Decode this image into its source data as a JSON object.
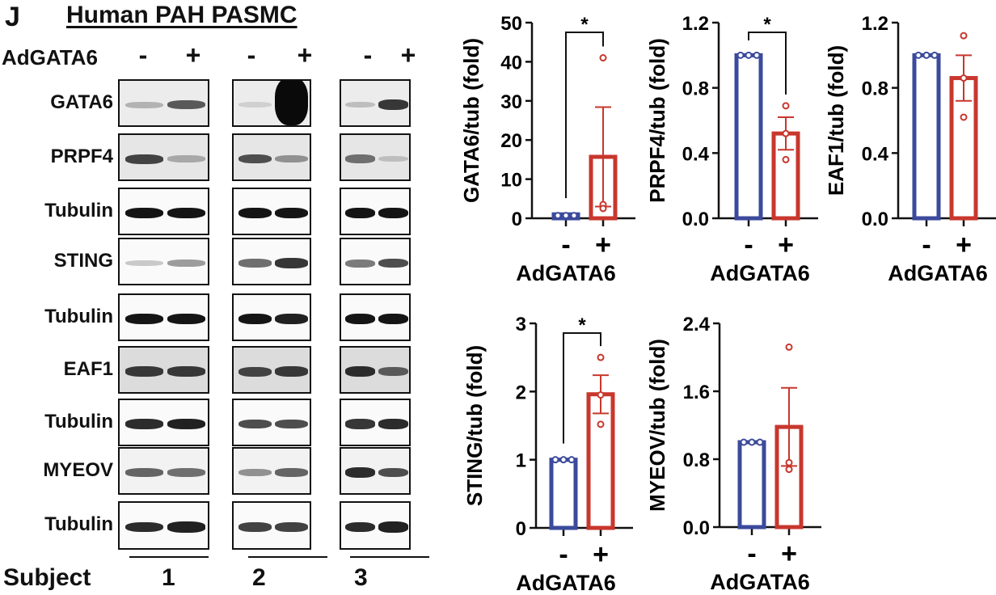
{
  "figure": {
    "panel_letter": "J",
    "title": "Human PAH PASMC",
    "treatment_label": "AdGATA6",
    "treatment_signs": [
      "-",
      "+",
      "-",
      "+",
      "-",
      "+"
    ],
    "subject_label": "Subject",
    "subjects": [
      "1",
      "2",
      "3"
    ],
    "blot_rows": [
      {
        "label": "GATA6",
        "bands": [
          0.25,
          0.65,
          0.12,
          1.0,
          0.2,
          0.8
        ]
      },
      {
        "label": "PRPF4",
        "bands": [
          0.75,
          0.3,
          0.7,
          0.4,
          0.55,
          0.2
        ]
      },
      {
        "label": "Tubulin",
        "bands": [
          0.95,
          0.95,
          0.95,
          0.95,
          0.95,
          0.95
        ]
      },
      {
        "label": "STING",
        "bands": [
          0.15,
          0.35,
          0.55,
          0.8,
          0.5,
          0.7
        ]
      },
      {
        "label": "Tubulin",
        "bands": [
          0.95,
          0.95,
          0.95,
          0.9,
          0.95,
          0.95
        ]
      },
      {
        "label": "EAF1",
        "bands": [
          0.8,
          0.8,
          0.75,
          0.8,
          0.85,
          0.65
        ]
      },
      {
        "label": "Tubulin",
        "bands": [
          0.85,
          0.9,
          0.7,
          0.7,
          0.8,
          0.85
        ]
      },
      {
        "label": "MYEOV",
        "bands": [
          0.6,
          0.55,
          0.4,
          0.6,
          0.85,
          0.7
        ]
      },
      {
        "label": "Tubulin",
        "bands": [
          0.85,
          0.9,
          0.75,
          0.75,
          0.85,
          0.9
        ]
      }
    ],
    "colors": {
      "control": "#3b4a9c",
      "treated": "#c8372d"
    }
  },
  "chart_data": [
    {
      "type": "bar",
      "title": "",
      "ylabel": "GATA6/tub (fold)",
      "xlabel": "AdGATA6",
      "categories": [
        "-",
        "+"
      ],
      "values": [
        1.0,
        15.7
      ],
      "error_sem": [
        0,
        12.7
      ],
      "points": [
        [
          0.7,
          0.7,
          0.7
        ],
        [
          41,
          3.5,
          2.5
        ]
      ],
      "ylim": [
        0,
        50
      ],
      "yticks": [
        "0",
        "10",
        "20",
        "30",
        "40",
        "50"
      ],
      "significance": "*"
    },
    {
      "type": "bar",
      "title": "",
      "ylabel": "PRPF4/tub (fold)",
      "xlabel": "AdGATA6",
      "categories": [
        "-",
        "+"
      ],
      "values": [
        1.0,
        0.52
      ],
      "error_sem": [
        0,
        0.1
      ],
      "points": [
        [
          1.0,
          1.0,
          1.0
        ],
        [
          0.69,
          0.52,
          0.36
        ]
      ],
      "ylim": [
        0,
        1.2
      ],
      "yticks": [
        "0.0",
        "0.4",
        "0.8",
        "1.2"
      ],
      "significance": "*"
    },
    {
      "type": "bar",
      "title": "",
      "ylabel": "EAF1/tub (fold)",
      "xlabel": "AdGATA6",
      "categories": [
        "-",
        "+"
      ],
      "values": [
        1.0,
        0.86
      ],
      "error_sem": [
        0,
        0.14
      ],
      "points": [
        [
          1.0,
          1.0,
          1.0
        ],
        [
          1.12,
          0.86,
          0.62
        ]
      ],
      "ylim": [
        0,
        1.2
      ],
      "yticks": [
        "0.0",
        "0.4",
        "0.8",
        "1.2"
      ],
      "significance": ""
    },
    {
      "type": "bar",
      "title": "",
      "ylabel": "STING/tub (fold)",
      "xlabel": "AdGATA6",
      "categories": [
        "-",
        "+"
      ],
      "values": [
        1.0,
        1.96
      ],
      "error_sem": [
        0,
        0.28
      ],
      "points": [
        [
          1.0,
          1.0,
          1.0
        ],
        [
          2.5,
          1.95,
          1.52
        ]
      ],
      "ylim": [
        0,
        3
      ],
      "yticks": [
        "0",
        "1",
        "2",
        "3"
      ],
      "significance": "*"
    },
    {
      "type": "bar",
      "title": "",
      "ylabel": "MYEOV/tub (fold)",
      "xlabel": "AdGATA6",
      "categories": [
        "-",
        "+"
      ],
      "values": [
        1.0,
        1.18
      ],
      "error_sem": [
        0,
        0.46
      ],
      "points": [
        [
          1.0,
          1.0,
          1.0
        ],
        [
          2.12,
          0.76,
          0.68
        ]
      ],
      "ylim": [
        0,
        2.4
      ],
      "yticks": [
        "0.0",
        "0.8",
        "1.6",
        "2.4"
      ],
      "significance": ""
    }
  ]
}
